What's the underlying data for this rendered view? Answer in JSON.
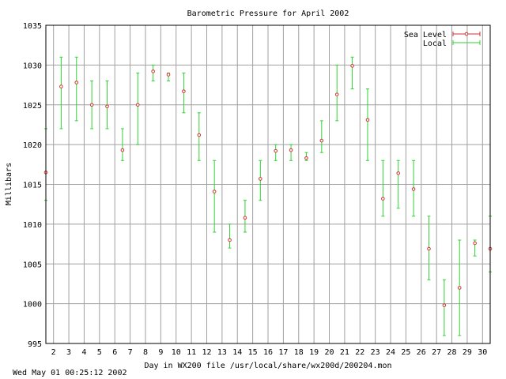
{
  "footer_text": "Wed May 01 00:25:12 2002",
  "chart_data": {
    "type": "scatter",
    "title": "Barometric Pressure for April 2002",
    "xlabel": "Day in WX200 file /usr/local/share/wx200d/200204.mon",
    "ylabel": "Millibars",
    "xlim": [
      1.5,
      30.5
    ],
    "ylim": [
      995,
      1035
    ],
    "x_ticks": [
      2,
      3,
      4,
      5,
      6,
      7,
      8,
      9,
      10,
      11,
      12,
      13,
      14,
      15,
      16,
      17,
      18,
      19,
      20,
      21,
      22,
      23,
      24,
      25,
      26,
      27,
      28,
      29,
      30
    ],
    "y_ticks": [
      995,
      1000,
      1005,
      1010,
      1015,
      1020,
      1025,
      1030,
      1035
    ],
    "grid": true,
    "legend_position": "top-right",
    "series": [
      {
        "name": "Sea Level",
        "color": "#d23232",
        "style": "points-with-error-bars",
        "x": [
          1.5,
          2.5,
          3.5,
          4.5,
          5.5,
          6.5,
          7.5,
          8.5,
          9.5,
          10.5,
          11.5,
          12.5,
          13.5,
          14.5,
          15.5,
          16.5,
          17.5,
          18.5,
          19.5,
          20.5,
          21.5,
          22.5,
          23.5,
          24.5,
          25.5,
          26.5,
          27.5,
          28.5,
          29.5,
          30.5
        ],
        "y": [
          1016.5,
          1027.3,
          1027.8,
          1025.0,
          1024.8,
          1019.3,
          1025.0,
          1029.2,
          1028.8,
          1026.7,
          1021.2,
          1014.1,
          1008.0,
          1010.8,
          1015.7,
          1019.2,
          1019.3,
          1018.3,
          1020.5,
          1026.3,
          1029.9,
          1023.1,
          1013.2,
          1016.4,
          1014.4,
          1006.9,
          999.8,
          1002.0,
          1007.6,
          1006.9
        ]
      },
      {
        "name": "Local",
        "color": "#32d232",
        "style": "range-bars",
        "x": [
          1.5,
          2.5,
          3.5,
          4.5,
          5.5,
          6.5,
          7.5,
          8.5,
          9.5,
          10.5,
          11.5,
          12.5,
          13.5,
          14.5,
          15.5,
          16.5,
          17.5,
          18.5,
          19.5,
          20.5,
          21.5,
          22.5,
          23.5,
          24.5,
          25.5,
          26.5,
          27.5,
          28.5,
          29.5,
          30.5
        ],
        "low": [
          1013,
          1022,
          1023,
          1022,
          1022,
          1018,
          1020,
          1028,
          1028,
          1024,
          1018,
          1009,
          1007,
          1009,
          1013,
          1018,
          1018,
          1018,
          1019,
          1023,
          1027,
          1018,
          1011,
          1012,
          1011,
          1003,
          996,
          996,
          1006,
          1004
        ],
        "high": [
          1022,
          1031,
          1031,
          1028,
          1028,
          1022,
          1029,
          1030,
          1029,
          1029,
          1024,
          1018,
          1010,
          1013,
          1018,
          1020,
          1020,
          1019,
          1023,
          1030,
          1031,
          1027,
          1018,
          1018,
          1018,
          1011,
          1003,
          1008,
          1008,
          1011
        ]
      }
    ]
  }
}
